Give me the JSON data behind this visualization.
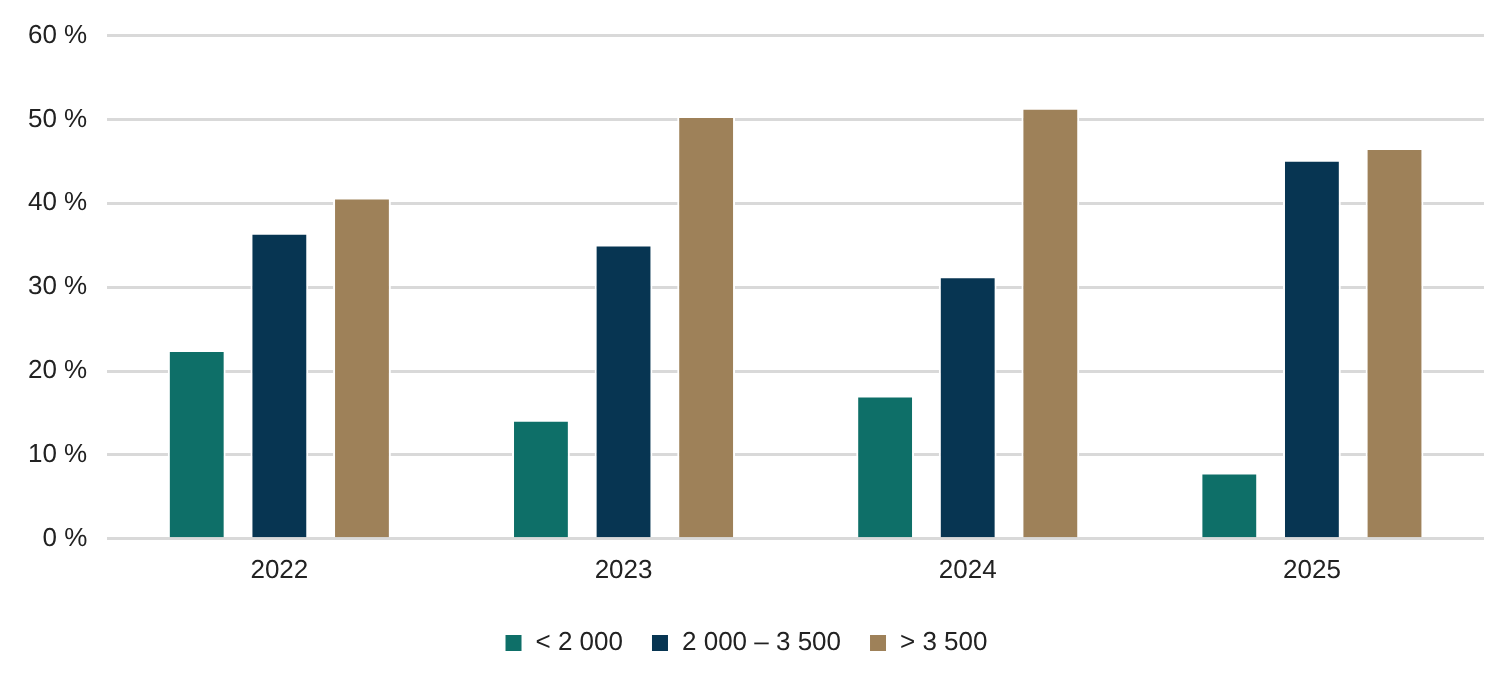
{
  "chart_data": {
    "type": "bar",
    "categories": [
      "2022",
      "2023",
      "2024",
      "2025"
    ],
    "series": [
      {
        "name": "< 2 000",
        "color": "#0e6f68",
        "values": [
          22.5,
          14.2,
          17.1,
          7.9
        ]
      },
      {
        "name": "2 000 – 3 500",
        "color": "#073552",
        "values": [
          36.5,
          35.1,
          31.3,
          45.2
        ]
      },
      {
        "name": "> 3 500",
        "color": "#9e8159",
        "values": [
          40.7,
          50.4,
          51.4,
          46.6
        ]
      }
    ],
    "ylim": [
      0,
      60
    ],
    "yticks": [
      {
        "value": 0,
        "label": "0 %"
      },
      {
        "value": 10,
        "label": "10 %"
      },
      {
        "value": 20,
        "label": "20 %"
      },
      {
        "value": 30,
        "label": "30 %"
      },
      {
        "value": 40,
        "label": "40 %"
      },
      {
        "value": 50,
        "label": "50 %"
      },
      {
        "value": 60,
        "label": "60 %"
      }
    ],
    "grid": "y",
    "legend": "bottom"
  }
}
